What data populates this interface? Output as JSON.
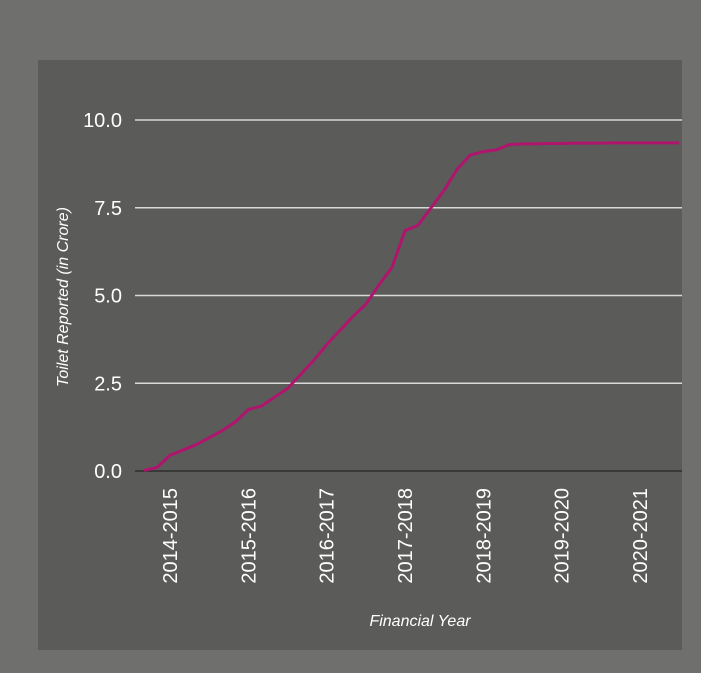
{
  "chart_data": {
    "type": "line",
    "y_label": "Toilet Reported (in Crore)",
    "x_label": "Financial Year",
    "categories": [
      null,
      null,
      "2014-2015",
      null,
      null,
      null,
      null,
      null,
      "2015-2016",
      null,
      null,
      null,
      null,
      null,
      "2016-2017",
      null,
      null,
      null,
      null,
      null,
      "2017-2018",
      null,
      null,
      null,
      null,
      null,
      "2018-2019",
      null,
      null,
      null,
      null,
      null,
      "2019-2020",
      null,
      null,
      null,
      null,
      null,
      "2020-2021",
      null,
      null,
      null
    ],
    "series": [
      {
        "name": "Toilet Reported",
        "color": "#b0156e",
        "values": [
          0.02,
          0.1,
          0.45,
          0.6,
          0.75,
          0.95,
          1.15,
          1.4,
          1.75,
          1.85,
          2.1,
          2.35,
          2.75,
          3.15,
          3.6,
          4.0,
          4.4,
          4.75,
          5.3,
          5.8,
          6.85,
          7.0,
          7.5,
          8.0,
          8.6,
          9.0,
          9.1,
          9.15,
          9.3,
          9.32,
          9.32,
          9.33,
          9.33,
          9.34,
          9.34,
          9.34,
          9.35,
          9.35,
          9.35,
          9.35,
          9.35,
          9.35
        ]
      }
    ],
    "ylim": [
      0,
      10
    ],
    "yticks": [
      {
        "value": 0,
        "label": "0.0"
      },
      2.5,
      {
        "value": 5,
        "label": "5.0"
      },
      7.5,
      {
        "value": 10,
        "label": "10.0"
      }
    ],
    "grid": true
  }
}
